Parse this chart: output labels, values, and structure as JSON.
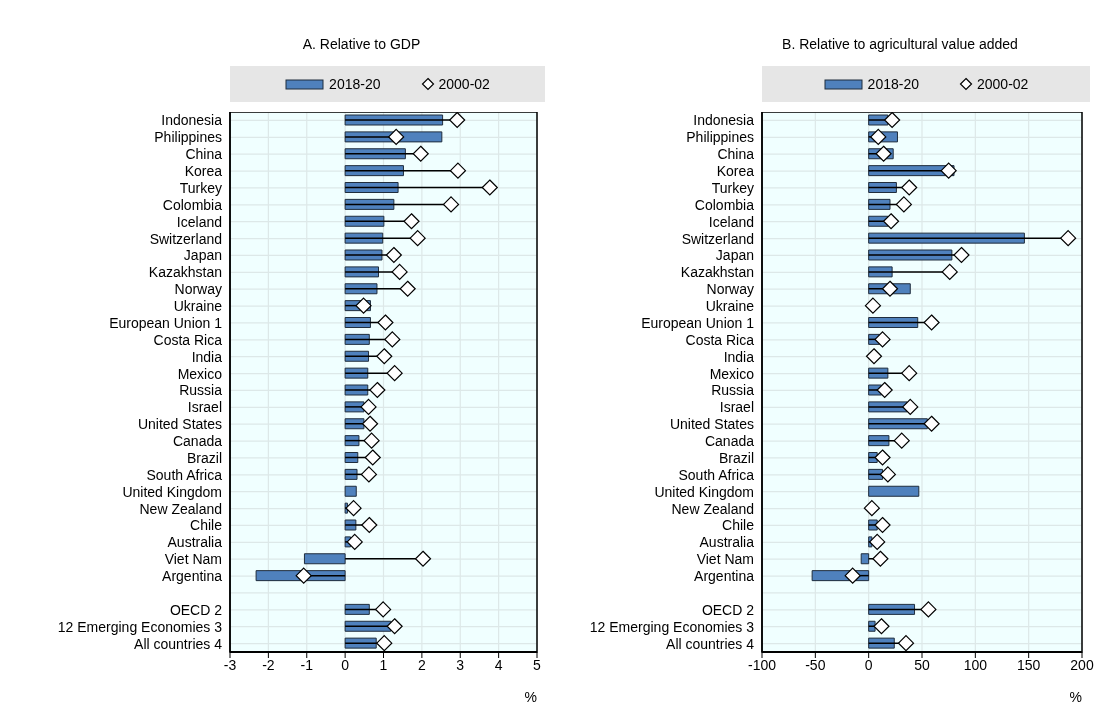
{
  "chart_data": [
    {
      "type": "bar",
      "orientation": "horizontal",
      "title": "A. Relative to GDP",
      "xlabel": "%",
      "legend": "top",
      "grid": true,
      "xlim": [
        -3,
        5
      ],
      "xticks": [
        -3,
        -2,
        -1,
        0,
        1,
        2,
        3,
        4,
        5
      ],
      "categories": [
        "Indonesia",
        "Philippines",
        "China",
        "Korea",
        "Turkey",
        "Colombia",
        "Iceland",
        "Switzerland",
        "Japan",
        "Kazakhstan",
        "Norway",
        "Ukraine",
        "European Union 1",
        "Costa Rica",
        "India",
        "Mexico",
        "Russia",
        "Israel",
        "United States",
        "Canada",
        "Brazil",
        "South Africa",
        "United Kingdom",
        "New Zealand",
        "Chile",
        "Australia",
        "Viet Nam",
        "Argentina",
        null,
        "OECD 2",
        "12 Emerging Economies 3",
        "All countries 4"
      ],
      "series": [
        {
          "name": "2018-20",
          "type": "bar",
          "color": "#4f81bd",
          "values": [
            2.54,
            2.52,
            1.57,
            1.52,
            1.38,
            1.27,
            1.01,
            0.98,
            0.96,
            0.87,
            0.83,
            0.66,
            0.66,
            0.63,
            0.61,
            0.59,
            0.59,
            0.49,
            0.49,
            0.36,
            0.33,
            0.31,
            0.29,
            0.06,
            0.28,
            0.14,
            -1.06,
            -2.32,
            null,
            0.63,
            1.19,
            0.81
          ]
        },
        {
          "name": "2000-02",
          "type": "scatter",
          "marker": "diamond",
          "color": "#ffffff",
          "values": [
            2.92,
            1.33,
            1.97,
            2.94,
            3.77,
            2.76,
            1.73,
            1.89,
            1.27,
            1.42,
            1.63,
            0.48,
            1.05,
            1.23,
            1.02,
            1.29,
            0.84,
            0.61,
            0.65,
            0.69,
            0.72,
            0.62,
            null,
            0.22,
            0.63,
            0.25,
            2.03,
            -1.08,
            null,
            0.99,
            1.29,
            1.02
          ]
        }
      ]
    },
    {
      "type": "bar",
      "orientation": "horizontal",
      "title": "B. Relative to agricultural value added",
      "xlabel": "%",
      "legend": "top",
      "grid": true,
      "xlim": [
        -100,
        200
      ],
      "xticks": [
        -100,
        -50,
        0,
        50,
        100,
        150,
        200
      ],
      "categories": [
        "Indonesia",
        "Philippines",
        "China",
        "Korea",
        "Turkey",
        "Colombia",
        "Iceland",
        "Switzerland",
        "Japan",
        "Kazakhstan",
        "Norway",
        "Ukraine",
        "European Union 1",
        "Costa Rica",
        "India",
        "Mexico",
        "Russia",
        "Israel",
        "United States",
        "Canada",
        "Brazil",
        "South Africa",
        "United Kingdom",
        "New Zealand",
        "Chile",
        "Australia",
        "Viet Nam",
        "Argentina",
        null,
        "OECD 2",
        "12 Emerging Economies 3",
        "All countries 4"
      ],
      "series": [
        {
          "name": "2018-20",
          "type": "bar",
          "color": "#4f81bd",
          "values": [
            18,
            27,
            23,
            80,
            26,
            20,
            18,
            146,
            78,
            22,
            39,
            null,
            46,
            10,
            null,
            18,
            12,
            36,
            55,
            19,
            8,
            13,
            47,
            null,
            8,
            3,
            -7,
            -53,
            null,
            43,
            6,
            24
          ]
        },
        {
          "name": "2000-02",
          "type": "scatter",
          "marker": "diamond",
          "color": "#ffffff",
          "values": [
            22,
            9,
            14,
            75,
            38,
            33,
            21,
            187,
            87,
            76,
            20,
            4,
            59,
            13,
            5,
            38,
            15,
            39,
            59,
            31,
            13,
            18,
            null,
            3,
            13,
            8,
            11,
            -15,
            null,
            56,
            12,
            35
          ]
        }
      ]
    }
  ]
}
